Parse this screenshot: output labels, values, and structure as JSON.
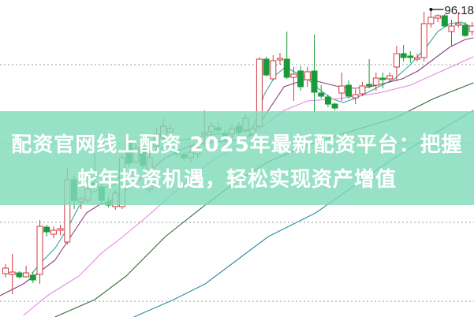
{
  "title": {
    "line1": "配资官网线上配资 2025年最新配资平台：把握",
    "line2": "蛇年投资机遇，轻松实现资产增值"
  },
  "chart_data": {
    "type": "candlestick",
    "grid": true,
    "grid_levels": [
      89,
      79,
      69,
      59
    ],
    "high_marker_label": "96.18",
    "colors": {
      "up": "#d0393e",
      "down": "#1a9a3a",
      "ma1": "#3aa597",
      "ma2": "#8a3f7a",
      "ma3": "#e08ae0",
      "ma4": "#2f6b32",
      "ma5": "#2a8fa0",
      "banner": "#80dab9"
    },
    "candles": [
      [
        62.5,
        63.2,
        63.7,
        62.0
      ],
      [
        62.4,
        62.7,
        65.0,
        59.9
      ],
      [
        62.6,
        62.1,
        62.8,
        61.9
      ],
      [
        62.1,
        62.6,
        63.5,
        62.0
      ],
      [
        62.3,
        61.7,
        62.7,
        61.3
      ],
      [
        62.4,
        68.5,
        69.3,
        61.2
      ],
      [
        68.4,
        67.8,
        68.7,
        67.2
      ],
      [
        67.5,
        68.0,
        68.5,
        67.0
      ],
      [
        68.0,
        68.2,
        68.7,
        67.4
      ],
      [
        66.5,
        74.4,
        76.0,
        66.2
      ],
      [
        74.4,
        71.8,
        74.9,
        70.7
      ],
      [
        71.6,
        72.0,
        72.2,
        70.7
      ],
      [
        71.8,
        73.2,
        74.7,
        71.4
      ],
      [
        74.0,
        73.6,
        77.7,
        73.2
      ],
      [
        73.5,
        71.8,
        73.9,
        71.4
      ],
      [
        71.6,
        71.2,
        72.2,
        70.9
      ],
      [
        71.0,
        72.7,
        73.2,
        70.6
      ],
      [
        71.0,
        77.2,
        77.7,
        70.7
      ],
      [
        79.2,
        76.5,
        79.7,
        76.0
      ],
      [
        76.7,
        78.4,
        78.9,
        76.4
      ],
      [
        78.4,
        76.2,
        78.7,
        75.8
      ],
      [
        73.2,
        77.2,
        78.2,
        72.7
      ],
      [
        78.7,
        80.2,
        81.0,
        78.2
      ],
      [
        79.7,
        81.2,
        82.2,
        79.2
      ],
      [
        80.4,
        80.9,
        81.4,
        80.0
      ],
      [
        78.2,
        77.7,
        78.7,
        77.2
      ],
      [
        77.6,
        77.2,
        78.0,
        76.7
      ],
      [
        77.2,
        77.9,
        78.7,
        76.6
      ],
      [
        77.7,
        78.4,
        79.2,
        77.2
      ],
      [
        80.2,
        80.4,
        83.2,
        78.7
      ],
      [
        80.5,
        81.2,
        81.7,
        80.0
      ],
      [
        81.0,
        80.7,
        81.7,
        80.2
      ],
      [
        80.2,
        79.5,
        80.7,
        79.2
      ],
      [
        80.2,
        80.9,
        81.4,
        79.7
      ],
      [
        81.2,
        80.4,
        81.7,
        80.0
      ],
      [
        80.7,
        82.2,
        82.7,
        80.4
      ],
      [
        80.2,
        80.9,
        81.2,
        80.0
      ],
      [
        81.2,
        89.7,
        89.9,
        81.0
      ],
      [
        89.7,
        87.7,
        90.0,
        87.5
      ],
      [
        87.2,
        89.5,
        90.2,
        87.0
      ],
      [
        89.6,
        89.8,
        90.5,
        89.0
      ],
      [
        89.7,
        87.4,
        93.2,
        87.2
      ],
      [
        87.4,
        87.8,
        88.7,
        84.4
      ],
      [
        88.2,
        86.2,
        88.8,
        85.7
      ],
      [
        87.1,
        88.1,
        88.7,
        86.2
      ],
      [
        88.2,
        85.5,
        92.8,
        82.9
      ],
      [
        85.4,
        85.0,
        86.4,
        84.7
      ],
      [
        84.9,
        84.0,
        85.2,
        83.6
      ],
      [
        84.0,
        83.5,
        84.2,
        83.2
      ],
      [
        85.4,
        86.3,
        88.0,
        84.4
      ],
      [
        86.4,
        85.0,
        87.0,
        84.7
      ],
      [
        84.8,
        85.2,
        85.9,
        84.0
      ],
      [
        85.3,
        86.3,
        86.8,
        85.0
      ],
      [
        86.5,
        86.3,
        89.7,
        86.0
      ],
      [
        86.4,
        87.3,
        88.0,
        85.7
      ],
      [
        87.3,
        87.1,
        88.0,
        86.0
      ],
      [
        87.2,
        87.6,
        88.0,
        86.7
      ],
      [
        88.7,
        90.4,
        91.4,
        86.9
      ],
      [
        90.4,
        89.9,
        91.5,
        89.4
      ],
      [
        90.1,
        89.9,
        90.7,
        89.2
      ],
      [
        89.7,
        89.9,
        90.4,
        89.4
      ],
      [
        89.9,
        94.2,
        95.7,
        89.4
      ],
      [
        94.2,
        95.0,
        96.2,
        93.7
      ],
      [
        94.9,
        95.2,
        95.4,
        94.4
      ],
      [
        95.2,
        93.9,
        95.4,
        93.7
      ],
      [
        93.2,
        93.9,
        94.7,
        91.4
      ],
      [
        94.0,
        94.2,
        95.7,
        93.7
      ],
      [
        94.0,
        92.7,
        94.4,
        92.5
      ],
      [
        93.2,
        93.9,
        94.4,
        92.7
      ]
    ],
    "moving_averages": [
      {
        "color_key": "ma1",
        "points": [
          [
            3.8,
            62.5
          ],
          [
            5.5,
            64.2
          ],
          [
            7.2,
            65.7
          ],
          [
            9.0,
            68.2
          ],
          [
            10.7,
            71.0
          ],
          [
            12.4,
            72.7
          ],
          [
            14.1,
            73.4
          ],
          [
            15.9,
            73.7
          ],
          [
            17.6,
            76.7
          ],
          [
            19.9,
            77.7
          ],
          [
            22.2,
            78.2
          ],
          [
            25.6,
            79.4
          ],
          [
            29.1,
            80.0
          ],
          [
            32.5,
            80.4
          ],
          [
            36.0,
            80.7
          ],
          [
            37.7,
            85.2
          ],
          [
            39.4,
            87.7
          ],
          [
            40.8,
            88.7
          ],
          [
            42.3,
            88.0
          ],
          [
            44.0,
            87.2
          ],
          [
            45.7,
            85.9
          ],
          [
            47.5,
            84.7
          ],
          [
            49.2,
            84.2
          ],
          [
            50.9,
            84.7
          ],
          [
            52.6,
            85.4
          ],
          [
            54.4,
            86.2
          ],
          [
            56.7,
            87.2
          ],
          [
            59.0,
            89.0
          ],
          [
            61.3,
            91.2
          ],
          [
            63.0,
            93.2
          ],
          [
            64.7,
            94.2
          ],
          [
            66.4,
            94.4
          ],
          [
            68.2,
            93.7
          ]
        ]
      },
      {
        "color_key": "ma2",
        "points": [
          [
            -0.8,
            59.7
          ],
          [
            2.6,
            61.2
          ],
          [
            4.9,
            62.7
          ],
          [
            7.2,
            64.2
          ],
          [
            9.5,
            67.2
          ],
          [
            11.8,
            70.2
          ],
          [
            13.6,
            71.2
          ],
          [
            15.3,
            71.7
          ],
          [
            17.0,
            72.7
          ],
          [
            19.9,
            74.7
          ],
          [
            23.3,
            77.2
          ],
          [
            26.8,
            78.7
          ],
          [
            30.2,
            79.2
          ],
          [
            33.7,
            79.4
          ],
          [
            36.0,
            80.2
          ],
          [
            38.3,
            83.2
          ],
          [
            40.6,
            86.2
          ],
          [
            42.3,
            86.7
          ],
          [
            44.0,
            87.2
          ],
          [
            46.3,
            86.7
          ],
          [
            48.6,
            86.2
          ],
          [
            50.9,
            86.0
          ],
          [
            53.2,
            86.2
          ],
          [
            55.5,
            86.7
          ],
          [
            57.8,
            87.2
          ],
          [
            60.1,
            88.2
          ],
          [
            62.4,
            89.7
          ],
          [
            64.7,
            91.2
          ],
          [
            67.0,
            92.2
          ],
          [
            68.2,
            92.4
          ]
        ]
      },
      {
        "color_key": "ma3",
        "points": [
          [
            2.6,
            57.2
          ],
          [
            6.1,
            59.7
          ],
          [
            10.7,
            62.2
          ],
          [
            14.1,
            65.2
          ],
          [
            16.4,
            66.7
          ],
          [
            19.9,
            69.2
          ],
          [
            24.5,
            72.7
          ],
          [
            29.1,
            76.2
          ],
          [
            33.7,
            78.7
          ],
          [
            37.1,
            80.9
          ],
          [
            40.6,
            83.2
          ],
          [
            44.0,
            84.4
          ],
          [
            48.6,
            84.7
          ],
          [
            54.4,
            85.4
          ],
          [
            59.0,
            86.4
          ],
          [
            63.6,
            88.2
          ],
          [
            68.2,
            90.0
          ]
        ]
      },
      {
        "color_key": "ma4",
        "points": [
          [
            7.2,
            57.0
          ],
          [
            13.0,
            59.2
          ],
          [
            17.6,
            62.2
          ],
          [
            23.3,
            67.2
          ],
          [
            29.1,
            71.2
          ],
          [
            33.7,
            74.2
          ],
          [
            38.3,
            76.7
          ],
          [
            45.2,
            79.2
          ],
          [
            50.9,
            80.7
          ],
          [
            56.7,
            82.2
          ],
          [
            62.4,
            84.7
          ],
          [
            68.2,
            86.7
          ]
        ]
      },
      {
        "color_key": "ma5",
        "points": [
          [
            18.7,
            57.0
          ],
          [
            24.5,
            59.2
          ],
          [
            29.1,
            61.2
          ],
          [
            33.7,
            64.2
          ],
          [
            38.3,
            67.2
          ],
          [
            45.2,
            70.2
          ],
          [
            50.9,
            73.7
          ],
          [
            56.7,
            77.2
          ],
          [
            62.4,
            80.2
          ],
          [
            68.2,
            83.2
          ]
        ]
      }
    ]
  }
}
